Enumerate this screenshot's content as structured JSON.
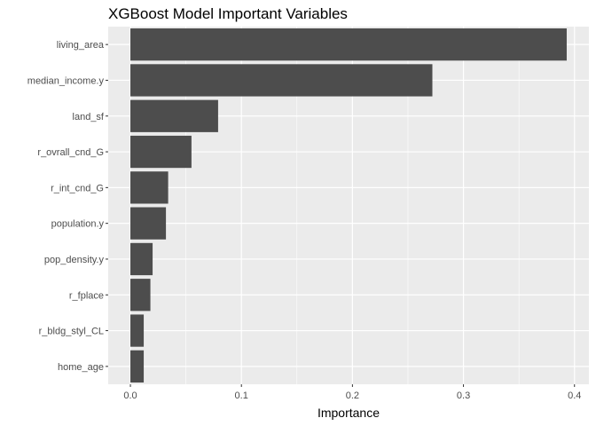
{
  "chart_data": {
    "type": "bar",
    "orientation": "horizontal",
    "title": "XGBoost Model Important Variables",
    "xlabel": "Importance",
    "ylabel": "",
    "categories": [
      "living_area",
      "median_income.y",
      "land_sf",
      "r_ovrall_cnd_G",
      "r_int_cnd_G",
      "population.y",
      "pop_density.y",
      "r_fplace",
      "r_bldg_styl_CL",
      "home_age"
    ],
    "values": [
      0.393,
      0.272,
      0.079,
      0.055,
      0.034,
      0.032,
      0.02,
      0.018,
      0.012,
      0.012
    ],
    "xlim": [
      -0.02,
      0.413
    ],
    "x_ticks": [
      0.0,
      0.1,
      0.2,
      0.3,
      0.4
    ],
    "x_tick_labels": [
      "0.0",
      "0.1",
      "0.2",
      "0.3",
      "0.4"
    ],
    "grid": true,
    "legend": "none",
    "bar_color": "#4d4d4d",
    "panel_background": "#ebebeb",
    "grid_color": "#ffffff"
  }
}
